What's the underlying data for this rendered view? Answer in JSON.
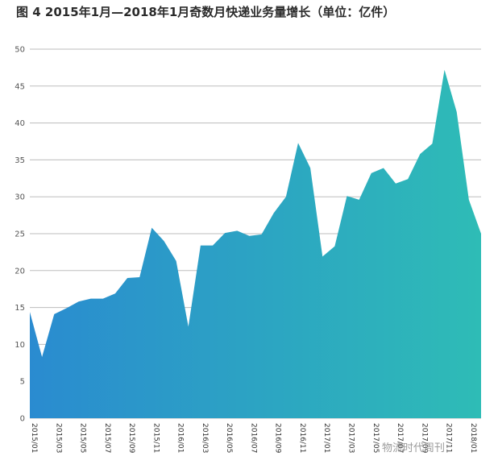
{
  "chart_data": {
    "type": "area",
    "title": "图 4  2015年1月—2018年1月奇数月快递业务量增长（单位：亿件）",
    "xlabel": "",
    "ylabel": "",
    "ylim": [
      0,
      50
    ],
    "yticks": [
      "0",
      "5",
      "10",
      "15",
      "20",
      "25",
      "30",
      "35",
      "40",
      "45",
      "50"
    ],
    "grid": true,
    "x_tick_labels": [
      "2015/01",
      "2015/03",
      "2015/05",
      "2015/07",
      "2015/09",
      "2015/11",
      "2016/01",
      "2016/03",
      "2016/05",
      "2016/07",
      "2016/09",
      "2016/11",
      "2017/01",
      "2017/03",
      "2017/05",
      "2017/07",
      "2017/09",
      "2017/11",
      "2018/01"
    ],
    "colors": {
      "gradient_start": "#2a8bd0",
      "gradient_end": "#2ebcb6",
      "grid": "#bdbdbd"
    },
    "series": [
      {
        "values": [
          14.4,
          8.3,
          14.1,
          14.9,
          15.8,
          16.2,
          16.2,
          16.9,
          19.0,
          19.1,
          25.8,
          24.0,
          21.3,
          12.4,
          23.4,
          23.4,
          25.1,
          25.4,
          24.7,
          24.9,
          27.8,
          30.0,
          37.3,
          33.9,
          21.9,
          23.3,
          30.1,
          29.6,
          33.2,
          33.9,
          31.8,
          32.4,
          35.8,
          37.2,
          47.2,
          41.5,
          29.6,
          25.0
        ]
      }
    ]
  },
  "watermark": "物流时代周刊"
}
